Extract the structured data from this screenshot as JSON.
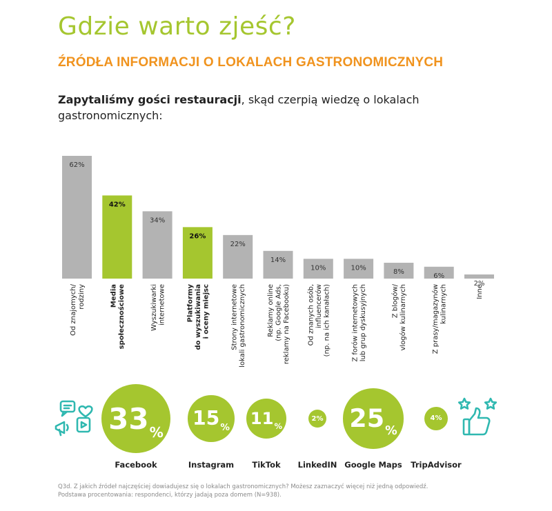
{
  "title": "Gdzie warto zjeść?",
  "subtitle": "ŹRÓDŁA INFORMACJI O LOKALACH GASTRONOMICZNYCH",
  "intro_bold": "Zapytaliśmy gości restauracji",
  "intro_rest": ", skąd czerpią wiedzę o lokalach gastronomicznych:",
  "colors": {
    "green": "#a5c62f",
    "gray": "#b3b3b3",
    "orange": "#f0931e",
    "teal": "#2fb8b0"
  },
  "chart_data": {
    "type": "bar",
    "categories": [
      [
        "Od znajomych/",
        "rodziny"
      ],
      [
        "Media",
        "społecznościowe"
      ],
      [
        "Wyszukiwarki",
        "internetowe"
      ],
      [
        "Platformy",
        "do wyszukiwania",
        "i oceny miejsc"
      ],
      [
        "Strony internetowe",
        "lokali gastronomicznych"
      ],
      [
        "Reklamy online",
        "(np. Google Ads,",
        "reklamy na Facebooku)"
      ],
      [
        "Od znanych osób,",
        "influencerów",
        "(np. na ich kanałach)"
      ],
      [
        "Z forów internetowych",
        "lub grup dyskusyjnych"
      ],
      [
        "Z blogów/",
        "vlogów kulinarnych"
      ],
      [
        "Z prasy/magazynów",
        "kulinarnych"
      ],
      [
        "Inne"
      ]
    ],
    "values": [
      62,
      42,
      34,
      26,
      22,
      14,
      10,
      10,
      8,
      6,
      2
    ],
    "value_labels": [
      "62%",
      "42%",
      "34%",
      "26%",
      "22%",
      "14%",
      "10%",
      "10%",
      "8%",
      "6%",
      "2%"
    ],
    "highlighted": [
      false,
      true,
      false,
      true,
      false,
      false,
      false,
      false,
      false,
      false,
      false
    ],
    "ylim": [
      0,
      62
    ],
    "title": "",
    "xlabel": "",
    "ylabel": ""
  },
  "platforms": [
    {
      "name": "Facebook",
      "value": 33
    },
    {
      "name": "Instagram",
      "value": 15
    },
    {
      "name": "TikTok",
      "value": 11
    },
    {
      "name": "LinkedIN",
      "value": 2
    },
    {
      "name": "Google Maps",
      "value": 25
    },
    {
      "name": "TripAdvisor",
      "value": 4
    }
  ],
  "percent_sign": "%",
  "footnote_line1": "Q3d. Z jakich źródeł najczęściej dowiadujesz się o lokalach gastronomicznych? Możesz zaznaczyć więcej niż jedną odpowiedź.",
  "footnote_line2": "Podstawa procentowania: respondenci, którzy jadają poza domem (N=938)."
}
